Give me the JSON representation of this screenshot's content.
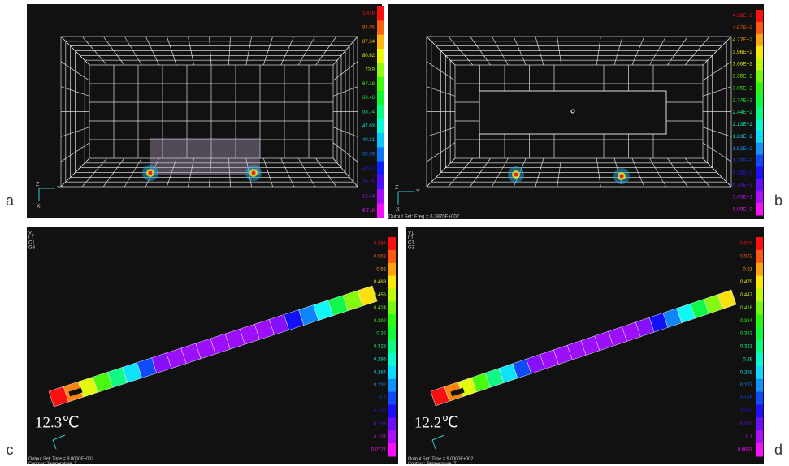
{
  "panels": [
    {
      "letter": "a",
      "axis_labels": [
        "Z",
        "Y",
        "X"
      ],
      "colorbar": [
        "100.8",
        "94.05",
        "87.34",
        "80.62",
        "73.9",
        "67.18",
        "60.46",
        "53.74",
        "47.03",
        "40.31",
        "33.59",
        "26.87",
        "20.15",
        "13.44",
        "6.718"
      ]
    },
    {
      "letter": "b",
      "axis_labels": [
        "Z",
        "Y",
        "X"
      ],
      "output_set": "Output Set: Freq = 6.3870E+007",
      "colorbar": [
        "4.88E+2",
        "4.57E+2",
        "4.27E+2",
        "3.96E+2",
        "3.66E+2",
        "3.35E+2",
        "3.05E+2",
        "2.74E+2",
        "2.44E+2",
        "2.13E+2",
        "1.83E+2",
        "1.52E+2",
        "1.22E+2",
        "9.15E+1",
        "6.10E+1",
        "3.05E+1",
        "0.00E+0"
      ]
    },
    {
      "letter": "c",
      "view_info": [
        "V1",
        "L1",
        "C1",
        "G3"
      ],
      "temperature": "12.3℃",
      "output_set": "Output Set: Time = 9.0000E+002",
      "contour": "Contour: Temperature, T",
      "colorbar": [
        "0.584",
        "0.552",
        "0.52",
        "0.488",
        "0.456",
        "0.424",
        "0.392",
        "0.36",
        "0.328",
        "0.296",
        "0.264",
        "0.232",
        "0.2",
        "0.168",
        "0.136",
        "0.104",
        "0.0721"
      ]
    },
    {
      "letter": "d",
      "view_info": [
        "V1",
        "L1",
        "C1",
        "G3"
      ],
      "temperature": "12.2℃",
      "output_set": "Output Set: Time = 9.0000E+002",
      "contour": "Contour: Temperature, T",
      "colorbar": [
        "0.574",
        "0.542",
        "0.51",
        "0.479",
        "0.447",
        "0.416",
        "0.384",
        "0.353",
        "0.321",
        "0.29",
        "0.258",
        "0.227",
        "0.195",
        "0.163",
        "0.132",
        "0.1",
        "0.0687"
      ]
    }
  ]
}
